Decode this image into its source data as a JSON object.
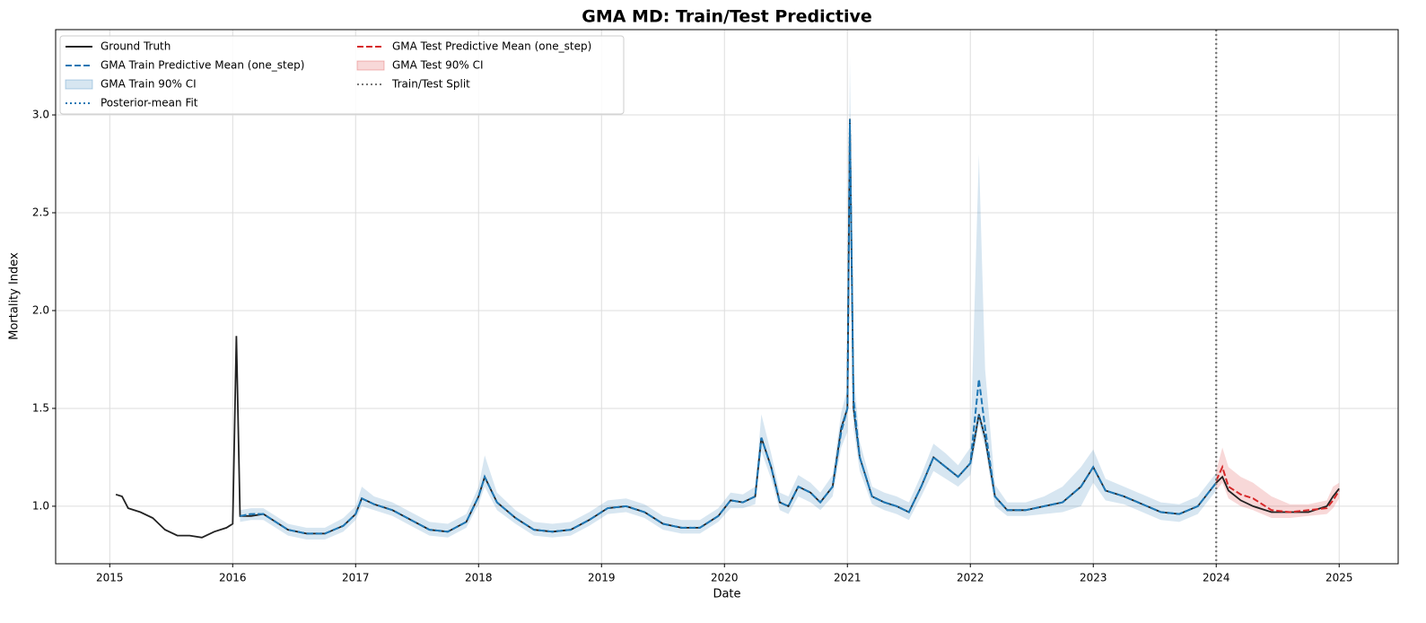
{
  "chart_data": {
    "type": "line",
    "title": "GMA MD: Train/Test Predictive",
    "x_label": "Date",
    "y_label": "Mortality Index",
    "xlim": [
      2014.56,
      2025.48
    ],
    "ylim": [
      0.706,
      3.436
    ],
    "xticks": [
      2015,
      2016,
      2017,
      2018,
      2019,
      2020,
      2021,
      2022,
      2023,
      2024,
      2025
    ],
    "yticks": [
      {
        "value": 1,
        "label": "1.0"
      },
      {
        "value": 1.5,
        "label": "1.5"
      },
      {
        "value": 2,
        "label": "2.0"
      },
      {
        "value": 2.5,
        "label": "2.5"
      },
      {
        "value": 3,
        "label": "3.0"
      }
    ],
    "grid": true,
    "legend": "upper left",
    "series": [
      {
        "name": "Ground Truth",
        "kind": "line",
        "style": "solid",
        "color": "#222222",
        "x": [
          2015.05,
          2015.1,
          2015.15,
          2015.25,
          2015.35,
          2015.45,
          2015.55,
          2015.65,
          2015.75,
          2015.85,
          2015.95,
          2016.0,
          2016.03,
          2016.06,
          2016.15,
          2016.25,
          2016.35,
          2016.45,
          2016.6,
          2016.75,
          2016.9,
          2017.0,
          2017.05,
          2017.15,
          2017.3,
          2017.45,
          2017.6,
          2017.75,
          2017.9,
          2018.0,
          2018.05,
          2018.15,
          2018.3,
          2018.45,
          2018.6,
          2018.75,
          2018.9,
          2019.05,
          2019.2,
          2019.35,
          2019.5,
          2019.65,
          2019.8,
          2019.95,
          2020.05,
          2020.15,
          2020.25,
          2020.3,
          2020.38,
          2020.45,
          2020.52,
          2020.6,
          2020.7,
          2020.78,
          2020.88,
          2020.95,
          2021.0,
          2021.02,
          2021.05,
          2021.1,
          2021.2,
          2021.3,
          2021.4,
          2021.5,
          2021.6,
          2021.7,
          2021.8,
          2021.9,
          2022.0,
          2022.07,
          2022.12,
          2022.2,
          2022.3,
          2022.45,
          2022.6,
          2022.75,
          2022.9,
          2023.0,
          2023.1,
          2023.25,
          2023.4,
          2023.55,
          2023.7,
          2023.85,
          2024.0,
          2024.05,
          2024.1,
          2024.2,
          2024.3,
          2024.45,
          2024.6,
          2024.75,
          2024.9,
          2024.95,
          2025.0
        ],
        "values": [
          1.06,
          1.05,
          0.99,
          0.97,
          0.94,
          0.88,
          0.85,
          0.85,
          0.84,
          0.87,
          0.89,
          0.91,
          1.87,
          0.95,
          0.95,
          0.96,
          0.92,
          0.88,
          0.86,
          0.86,
          0.9,
          0.96,
          1.04,
          1.01,
          0.98,
          0.93,
          0.88,
          0.87,
          0.92,
          1.05,
          1.15,
          1.02,
          0.94,
          0.88,
          0.87,
          0.88,
          0.93,
          0.99,
          1.0,
          0.97,
          0.91,
          0.89,
          0.89,
          0.95,
          1.03,
          1.02,
          1.05,
          1.35,
          1.2,
          1.02,
          1.0,
          1.1,
          1.07,
          1.02,
          1.1,
          1.4,
          1.5,
          2.98,
          1.5,
          1.25,
          1.05,
          1.02,
          1.0,
          0.97,
          1.1,
          1.25,
          1.2,
          1.15,
          1.22,
          1.47,
          1.35,
          1.05,
          0.98,
          0.98,
          1.0,
          1.02,
          1.1,
          1.2,
          1.08,
          1.05,
          1.01,
          0.97,
          0.96,
          1.0,
          1.12,
          1.15,
          1.08,
          1.03,
          1.0,
          0.97,
          0.97,
          0.97,
          1.0,
          1.05,
          1.09
        ]
      },
      {
        "name": "GMA Train Predictive Mean (one_step)",
        "kind": "line",
        "style": "dashed",
        "color": "#1f77b4",
        "x": [
          2016.06,
          2016.15,
          2016.25,
          2016.35,
          2016.45,
          2016.6,
          2016.75,
          2016.9,
          2017.0,
          2017.05,
          2017.15,
          2017.3,
          2017.45,
          2017.6,
          2017.75,
          2017.9,
          2018.0,
          2018.05,
          2018.15,
          2018.3,
          2018.45,
          2018.6,
          2018.75,
          2018.9,
          2019.05,
          2019.2,
          2019.35,
          2019.5,
          2019.65,
          2019.8,
          2019.95,
          2020.05,
          2020.15,
          2020.25,
          2020.3,
          2020.38,
          2020.45,
          2020.52,
          2020.6,
          2020.7,
          2020.78,
          2020.88,
          2020.95,
          2021.0,
          2021.02,
          2021.05,
          2021.1,
          2021.2,
          2021.3,
          2021.4,
          2021.5,
          2021.6,
          2021.7,
          2021.8,
          2021.9,
          2022.0,
          2022.07,
          2022.12,
          2022.2,
          2022.3,
          2022.45,
          2022.6,
          2022.75,
          2022.9,
          2023.0,
          2023.1,
          2023.25,
          2023.4,
          2023.55,
          2023.7,
          2023.85,
          2024.0
        ],
        "values": [
          0.95,
          0.96,
          0.96,
          0.92,
          0.88,
          0.86,
          0.86,
          0.9,
          0.96,
          1.04,
          1.01,
          0.98,
          0.93,
          0.88,
          0.87,
          0.92,
          1.05,
          1.15,
          1.02,
          0.94,
          0.88,
          0.87,
          0.88,
          0.93,
          0.99,
          1.0,
          0.97,
          0.91,
          0.89,
          0.89,
          0.95,
          1.03,
          1.02,
          1.05,
          1.35,
          1.2,
          1.02,
          1.0,
          1.1,
          1.07,
          1.02,
          1.1,
          1.38,
          1.5,
          2.95,
          1.55,
          1.25,
          1.05,
          1.02,
          1.0,
          0.97,
          1.1,
          1.25,
          1.2,
          1.15,
          1.22,
          1.65,
          1.4,
          1.05,
          0.98,
          0.98,
          1.0,
          1.02,
          1.1,
          1.2,
          1.08,
          1.05,
          1.01,
          0.97,
          0.96,
          1.0,
          1.12
        ]
      },
      {
        "name": "GMA Train 90% CI",
        "kind": "band",
        "color": "#1f77b4",
        "x": [
          2016.06,
          2016.15,
          2016.25,
          2016.35,
          2016.45,
          2016.6,
          2016.75,
          2016.9,
          2017.0,
          2017.05,
          2017.15,
          2017.3,
          2017.45,
          2017.6,
          2017.75,
          2017.9,
          2018.0,
          2018.05,
          2018.15,
          2018.3,
          2018.45,
          2018.6,
          2018.75,
          2018.9,
          2019.05,
          2019.2,
          2019.35,
          2019.5,
          2019.65,
          2019.8,
          2019.95,
          2020.05,
          2020.15,
          2020.25,
          2020.3,
          2020.38,
          2020.45,
          2020.52,
          2020.6,
          2020.7,
          2020.78,
          2020.88,
          2020.95,
          2021.0,
          2021.02,
          2021.05,
          2021.1,
          2021.2,
          2021.3,
          2021.4,
          2021.5,
          2021.6,
          2021.7,
          2021.8,
          2021.9,
          2022.0,
          2022.07,
          2022.12,
          2022.2,
          2022.3,
          2022.45,
          2022.6,
          2022.75,
          2022.9,
          2023.0,
          2023.1,
          2023.25,
          2023.4,
          2023.55,
          2023.7,
          2023.85,
          2024.0
        ],
        "lower": [
          0.92,
          0.93,
          0.93,
          0.89,
          0.85,
          0.83,
          0.83,
          0.87,
          0.93,
          1.0,
          0.98,
          0.95,
          0.9,
          0.85,
          0.84,
          0.89,
          1.01,
          1.1,
          0.98,
          0.91,
          0.85,
          0.84,
          0.85,
          0.9,
          0.96,
          0.97,
          0.94,
          0.88,
          0.86,
          0.86,
          0.92,
          0.99,
          0.99,
          1.01,
          1.28,
          1.14,
          0.98,
          0.96,
          1.05,
          1.02,
          0.98,
          1.05,
          1.3,
          1.38,
          2.5,
          1.4,
          1.18,
          1.01,
          0.98,
          0.96,
          0.93,
          1.05,
          1.18,
          1.14,
          1.1,
          1.16,
          1.42,
          1.3,
          1.0,
          0.95,
          0.95,
          0.96,
          0.97,
          1.0,
          1.12,
          1.03,
          1.01,
          0.97,
          0.93,
          0.92,
          0.96,
          1.08
        ],
        "upper": [
          0.98,
          0.99,
          0.99,
          0.95,
          0.91,
          0.89,
          0.89,
          0.94,
          1.0,
          1.1,
          1.05,
          1.02,
          0.97,
          0.92,
          0.91,
          0.96,
          1.1,
          1.26,
          1.07,
          0.98,
          0.92,
          0.91,
          0.92,
          0.97,
          1.03,
          1.04,
          1.01,
          0.95,
          0.93,
          0.93,
          0.99,
          1.07,
          1.06,
          1.1,
          1.47,
          1.27,
          1.07,
          1.05,
          1.16,
          1.12,
          1.07,
          1.16,
          1.48,
          1.6,
          3.3,
          1.7,
          1.33,
          1.1,
          1.07,
          1.05,
          1.02,
          1.16,
          1.32,
          1.27,
          1.21,
          1.3,
          2.8,
          1.7,
          1.11,
          1.02,
          1.02,
          1.05,
          1.1,
          1.2,
          1.29,
          1.14,
          1.1,
          1.06,
          1.02,
          1.01,
          1.05,
          1.17
        ]
      },
      {
        "name": "Posterior-mean Fit",
        "kind": "line",
        "style": "dotted",
        "color": "#1f77b4",
        "x": [
          2016.06,
          2016.15,
          2016.25,
          2016.35,
          2016.45,
          2016.6,
          2016.75,
          2016.9,
          2017.0,
          2017.05,
          2017.15,
          2017.3,
          2017.45,
          2017.6,
          2017.75,
          2017.9,
          2018.0,
          2018.05,
          2018.15,
          2018.3,
          2018.45,
          2018.6,
          2018.75,
          2018.9,
          2019.05,
          2019.2,
          2019.35,
          2019.5,
          2019.65,
          2019.8,
          2019.95,
          2020.05,
          2020.15,
          2020.25,
          2020.3,
          2020.38,
          2020.45,
          2020.52,
          2020.6,
          2020.7,
          2020.78,
          2020.88,
          2020.95,
          2021.0,
          2021.02,
          2021.05,
          2021.1,
          2021.2,
          2021.3,
          2021.4,
          2021.5,
          2021.6,
          2021.7,
          2021.8,
          2021.9,
          2022.0,
          2022.07,
          2022.12,
          2022.2,
          2022.3,
          2022.45,
          2022.6,
          2022.75,
          2022.9,
          2023.0,
          2023.1,
          2023.25,
          2023.4,
          2023.55,
          2023.7,
          2023.85,
          2024.0
        ],
        "values": [
          0.95,
          0.96,
          0.96,
          0.92,
          0.88,
          0.86,
          0.86,
          0.9,
          0.96,
          1.04,
          1.01,
          0.98,
          0.93,
          0.88,
          0.87,
          0.92,
          1.05,
          1.15,
          1.02,
          0.94,
          0.88,
          0.87,
          0.88,
          0.93,
          0.99,
          1.0,
          0.97,
          0.91,
          0.89,
          0.89,
          0.95,
          1.03,
          1.02,
          1.05,
          1.35,
          1.2,
          1.02,
          1.0,
          1.1,
          1.07,
          1.02,
          1.1,
          1.4,
          1.5,
          2.98,
          1.5,
          1.25,
          1.05,
          1.02,
          1.0,
          0.97,
          1.1,
          1.25,
          1.2,
          1.15,
          1.22,
          1.47,
          1.35,
          1.05,
          0.98,
          0.98,
          1.0,
          1.02,
          1.1,
          1.2,
          1.08,
          1.05,
          1.01,
          0.97,
          0.96,
          1.0,
          1.12
        ]
      },
      {
        "name": "GMA Test Predictive Mean (one_step)",
        "kind": "line",
        "style": "dashed",
        "color": "#d62728",
        "x": [
          2024.0,
          2024.05,
          2024.1,
          2024.2,
          2024.3,
          2024.45,
          2024.6,
          2024.75,
          2024.9,
          2024.95,
          2025.0
        ],
        "values": [
          1.13,
          1.2,
          1.1,
          1.06,
          1.04,
          0.98,
          0.97,
          0.98,
          0.99,
          1.03,
          1.08
        ]
      },
      {
        "name": "GMA Test 90% CI",
        "kind": "band",
        "color": "#d62728",
        "x": [
          2024.0,
          2024.05,
          2024.1,
          2024.2,
          2024.3,
          2024.45,
          2024.6,
          2024.75,
          2024.9,
          2024.95,
          2025.0
        ],
        "lower": [
          1.08,
          1.12,
          1.04,
          1.0,
          0.98,
          0.94,
          0.94,
          0.95,
          0.96,
          0.99,
          1.04
        ],
        "upper": [
          1.18,
          1.3,
          1.2,
          1.15,
          1.12,
          1.05,
          1.01,
          1.01,
          1.03,
          1.1,
          1.12
        ]
      },
      {
        "name": "Train/Test Split",
        "kind": "vline",
        "style": "dotted",
        "color": "#777777",
        "x": [
          2024.0
        ]
      }
    ]
  }
}
